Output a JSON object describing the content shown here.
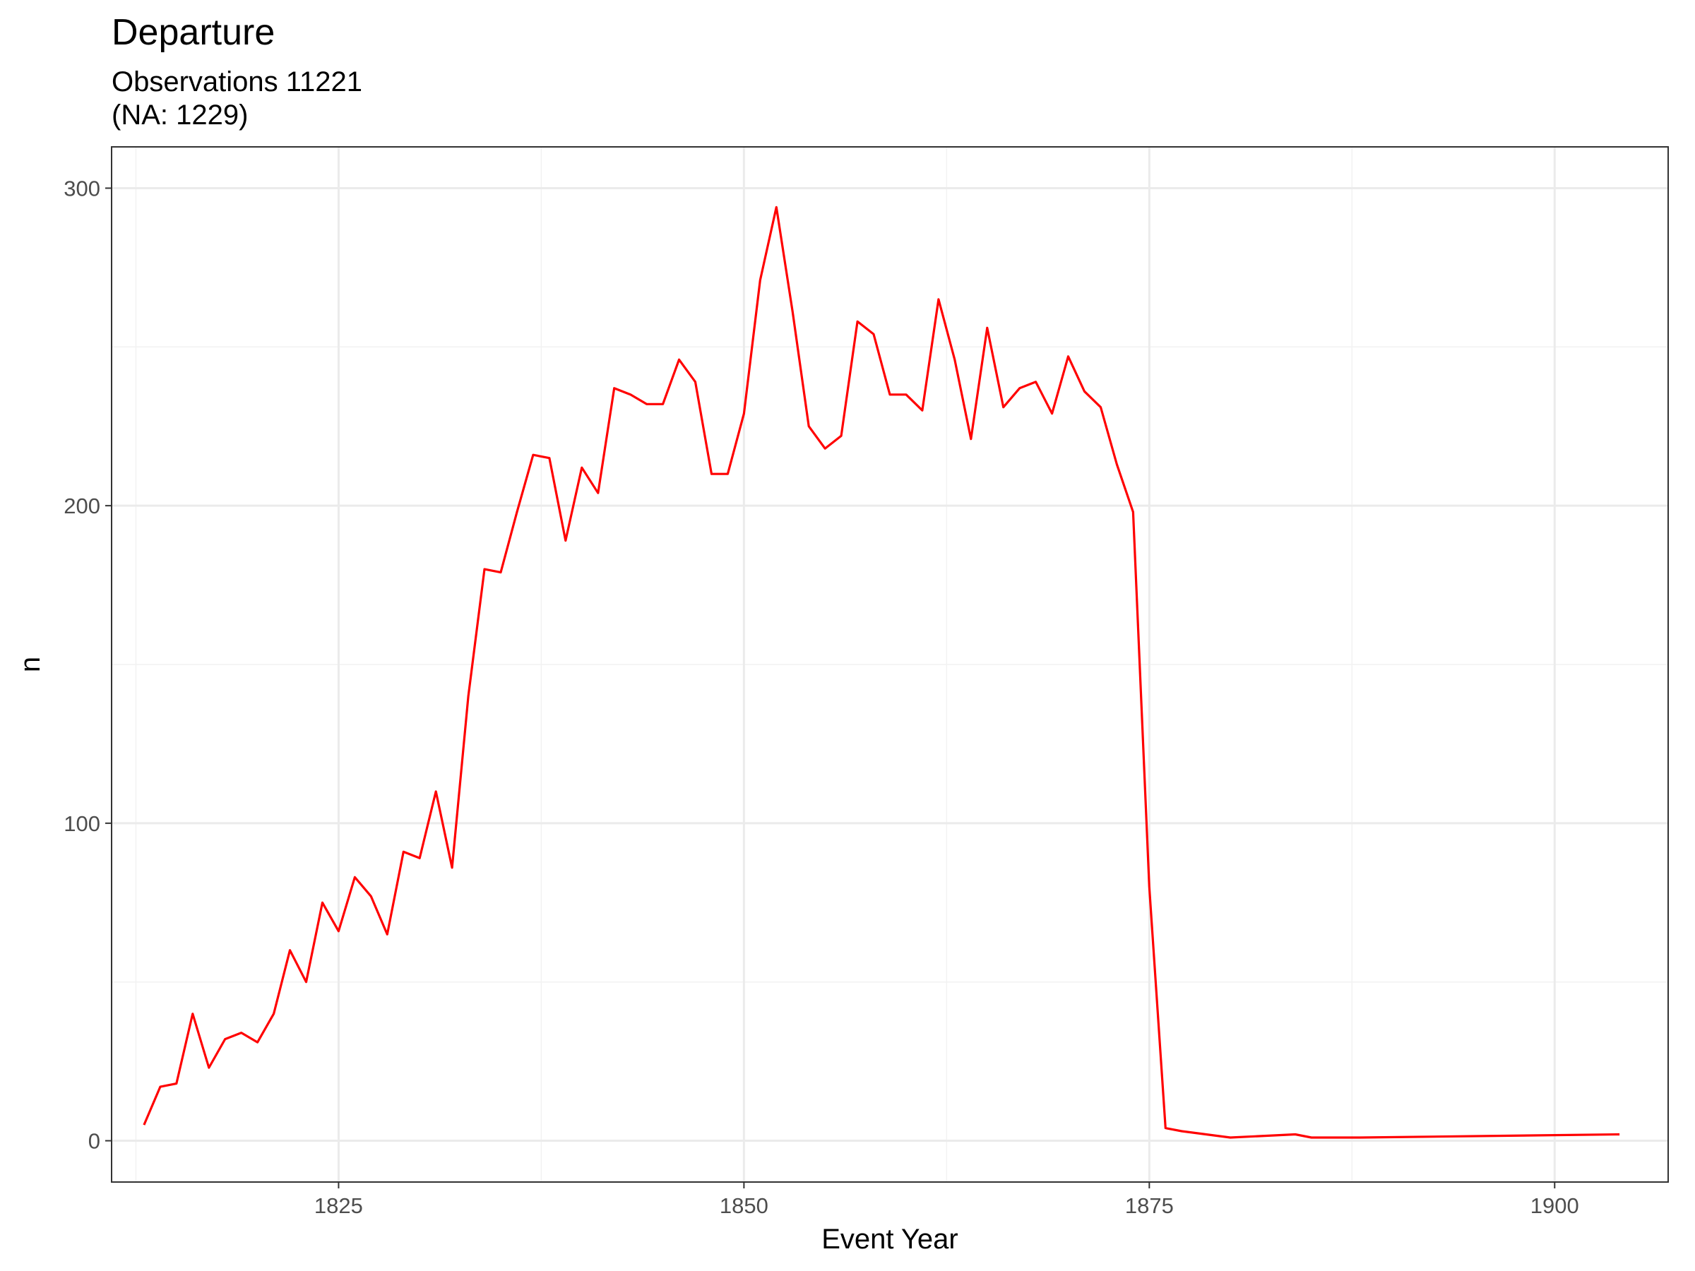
{
  "chart_data": {
    "type": "line",
    "title": "Departure",
    "subtitle_lines": [
      "Observations 11221",
      "(NA: 1229)"
    ],
    "xlabel": "Event Year",
    "ylabel": "n",
    "xlim": [
      1811,
      1907
    ],
    "ylim": [
      -13,
      313
    ],
    "x_major_ticks": [
      1825,
      1850,
      1875,
      1900
    ],
    "x_tick_labels": [
      "1825",
      "1850",
      "1875",
      "1900"
    ],
    "x_minor_ticks": [
      1812.5,
      1837.5,
      1862.5,
      1887.5
    ],
    "y_major_ticks": [
      0,
      100,
      200,
      300
    ],
    "y_tick_labels": [
      "0",
      "100",
      "200",
      "300"
    ],
    "y_minor_ticks": [
      50,
      150,
      250
    ],
    "grid": true,
    "legend": "none",
    "series": [
      {
        "color": "#ff0000",
        "x": [
          1813,
          1814,
          1815,
          1816,
          1817,
          1818,
          1819,
          1820,
          1821,
          1822,
          1823,
          1824,
          1825,
          1826,
          1827,
          1828,
          1829,
          1830,
          1831,
          1832,
          1833,
          1834,
          1835,
          1836,
          1837,
          1838,
          1839,
          1840,
          1841,
          1842,
          1843,
          1844,
          1845,
          1846,
          1847,
          1848,
          1849,
          1850,
          1851,
          1852,
          1853,
          1854,
          1855,
          1856,
          1857,
          1858,
          1859,
          1860,
          1861,
          1862,
          1863,
          1864,
          1865,
          1866,
          1867,
          1868,
          1869,
          1870,
          1871,
          1872,
          1873,
          1874,
          1875,
          1876,
          1877,
          1880,
          1884,
          1885,
          1888,
          1904
        ],
        "y": [
          5,
          17,
          18,
          40,
          23,
          32,
          34,
          31,
          40,
          60,
          50,
          75,
          66,
          83,
          77,
          65,
          91,
          89,
          110,
          86,
          140,
          180,
          179,
          198,
          216,
          215,
          189,
          212,
          204,
          237,
          235,
          232,
          232,
          246,
          239,
          210,
          210,
          229,
          271,
          294,
          261,
          225,
          218,
          222,
          258,
          254,
          235,
          235,
          230,
          265,
          246,
          221,
          256,
          231,
          237,
          239,
          229,
          247,
          236,
          231,
          213,
          198,
          80,
          4,
          3,
          1,
          2,
          1,
          1,
          2
        ]
      }
    ]
  }
}
